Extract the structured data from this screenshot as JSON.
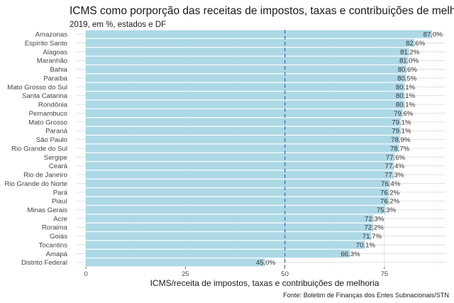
{
  "chart_data": {
    "type": "bar",
    "orientation": "horizontal",
    "title": "ICMS como porporção das receitas de impostos, taxas e contribuições de melhoria",
    "subtitle": "2019, em %, estados e DF",
    "xlabel": "ICMS/receita de impostos, taxas e contribuições de melhoria",
    "caption": "Fonte: Boletim de Finanças dos Entes Subnacionais/STN",
    "categories": [
      "Amazonas",
      "Espírito Santo",
      "Alagoas",
      "Maranhão",
      "Bahia",
      "Paraíba",
      "Mato Grosso do Sul",
      "Santa Catarina",
      "Rondônia",
      "Pernambuco",
      "Mato Grosso",
      "Paraná",
      "São Paulo",
      "Rio Grande do Sul",
      "Sergipe",
      "Ceará",
      "Rio de Janeiro",
      "Rio Grande do Norte",
      "Pará",
      "Piauí",
      "Minas Gerais",
      "Acre",
      "Roraima",
      "Goiás",
      "Tocantins",
      "Amapá",
      "Distrito Federal"
    ],
    "values": [
      87.0,
      82.6,
      81.2,
      81.0,
      80.6,
      80.5,
      80.1,
      80.1,
      80.1,
      79.6,
      79.1,
      79.1,
      78.9,
      78.7,
      77.6,
      77.4,
      77.3,
      76.4,
      76.2,
      76.2,
      75.3,
      72.3,
      72.2,
      71.7,
      70.1,
      66.3,
      45.0
    ],
    "value_labels": [
      "87.0%",
      "82.6%",
      "81.2%",
      "81.0%",
      "80.6%",
      "80.5%",
      "80.1%",
      "80.1%",
      "80.1%",
      "79.6%",
      "79.1%",
      "79.1%",
      "78.9%",
      "78.7%",
      "77.6%",
      "77.4%",
      "77.3%",
      "76.4%",
      "76.2%",
      "76.2%",
      "75.3%",
      "72.3%",
      "72.2%",
      "71.7%",
      "70.1%",
      "66.3%",
      "45.0%"
    ],
    "xticks": [
      0,
      25,
      50,
      75
    ],
    "xtick_labels": [
      "0",
      "25",
      "50",
      "75"
    ],
    "xlim": [
      0,
      89
    ],
    "reference_line": {
      "x": 50,
      "style": "dashed",
      "color": "#3f6fb5"
    },
    "bar_color": "#add8e6",
    "grid": true
  }
}
